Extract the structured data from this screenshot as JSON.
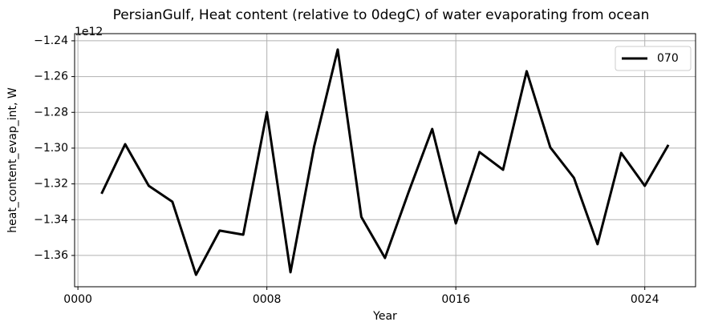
{
  "chart_data": {
    "type": "line",
    "title": "PersianGulf, Heat content (relative to 0degC) of water evaporating from ocean",
    "x_label": "Year",
    "y_label": "heat_content_evap_int, W",
    "y_offset_label": "1e12",
    "x": [
      1,
      2,
      3,
      4,
      5,
      6,
      7,
      8,
      9,
      10,
      11,
      12,
      13,
      14,
      15,
      16,
      17,
      18,
      19,
      20,
      21,
      22,
      23,
      24,
      25
    ],
    "series": [
      {
        "name": "070",
        "color": "#000000",
        "values": [
          -1.3255,
          -1.2978,
          -1.3211,
          -1.33,
          -1.3708,
          -1.3461,
          -1.3484,
          -1.2799,
          -1.3694,
          -1.2991,
          -1.2449,
          -1.3385,
          -1.3614,
          -1.3246,
          -1.2893,
          -1.3421,
          -1.3022,
          -1.3121,
          -1.257,
          -1.2996,
          -1.3166,
          -1.3537,
          -1.3027,
          -1.3211,
          -1.2982
        ]
      }
    ],
    "xlim": [
      -0.14,
      26.15
    ],
    "ylim": [
      -1.3775,
      -1.236
    ],
    "xticks": [
      {
        "value": 0,
        "label": "0000"
      },
      {
        "value": 8,
        "label": "0008"
      },
      {
        "value": 16,
        "label": "0016"
      },
      {
        "value": 24,
        "label": "0024"
      }
    ],
    "yticks": [
      {
        "value": -1.36,
        "label": "−1.36"
      },
      {
        "value": -1.34,
        "label": "−1.34"
      },
      {
        "value": -1.32,
        "label": "−1.32"
      },
      {
        "value": -1.3,
        "label": "−1.30"
      },
      {
        "value": -1.28,
        "label": "−1.28"
      },
      {
        "value": -1.26,
        "label": "−1.26"
      },
      {
        "value": -1.24,
        "label": "−1.24"
      }
    ],
    "grid": true,
    "legend": "upper right"
  }
}
